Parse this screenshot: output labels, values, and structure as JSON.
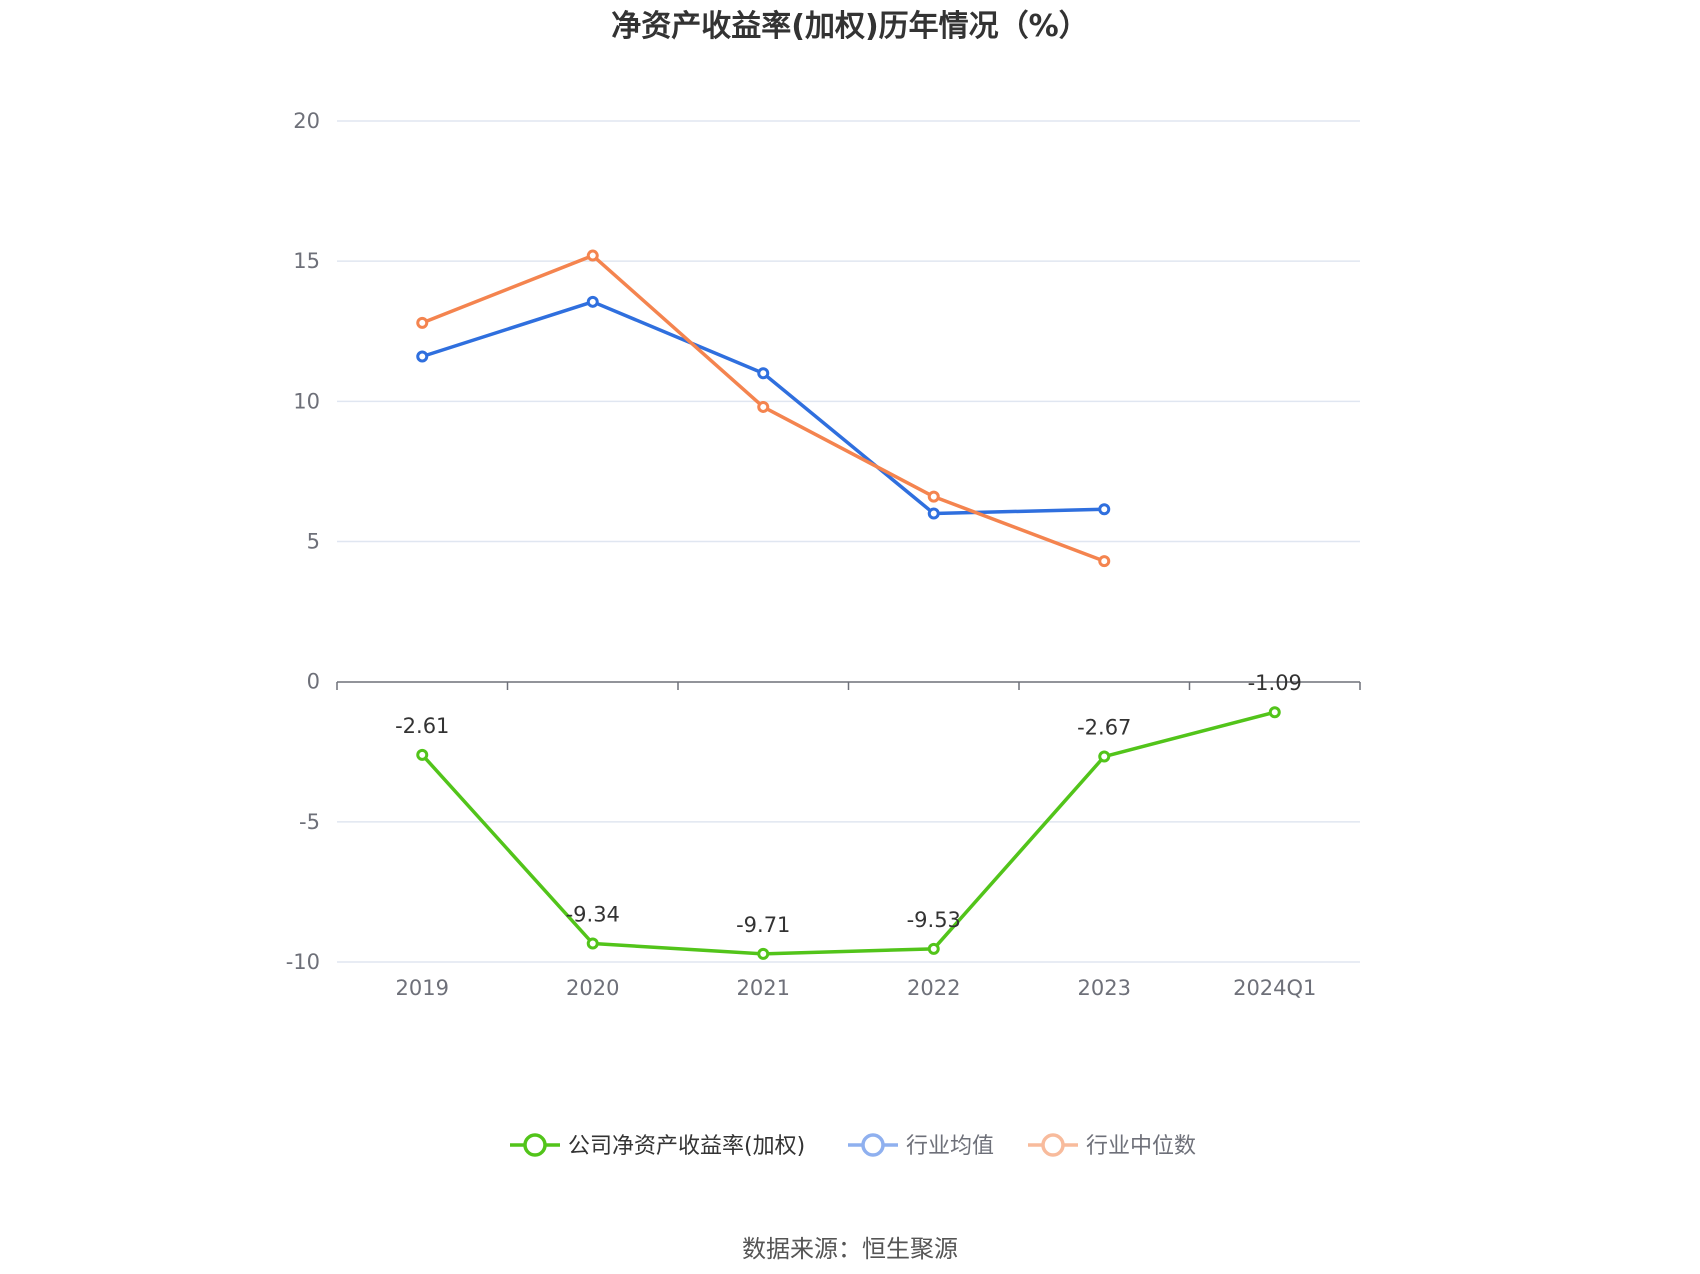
{
  "chart_data": {
    "type": "line",
    "title": "净资产收益率(加权)历年情况（%）",
    "xlabel": "",
    "ylabel": "",
    "categories": [
      "2019",
      "2020",
      "2021",
      "2022",
      "2023",
      "2024Q1"
    ],
    "ylim": [
      -10,
      20
    ],
    "yticks": [
      20,
      15,
      10,
      5,
      0,
      -5,
      -10
    ],
    "grid": true,
    "legend_position": "bottom",
    "series": [
      {
        "name": "公司净资产收益率(加权)",
        "color": "#52c41a",
        "values": [
          -2.61,
          -9.34,
          -9.71,
          -9.53,
          -2.67,
          -1.09
        ],
        "labels": [
          "-2.61",
          "-9.34",
          "-9.71",
          "-9.53",
          "-2.67",
          "-1.09"
        ]
      },
      {
        "name": "行业均值",
        "color": "#2f6fde",
        "legend_color": "#8fb0ef",
        "values": [
          11.6,
          13.55,
          11.0,
          6.0,
          6.15,
          null
        ]
      },
      {
        "name": "行业中位数",
        "color": "#f4844f",
        "legend_color": "#f8bb9c",
        "values": [
          12.8,
          15.2,
          9.8,
          6.6,
          4.3,
          null
        ]
      }
    ]
  },
  "source": "数据来源：恒生聚源"
}
